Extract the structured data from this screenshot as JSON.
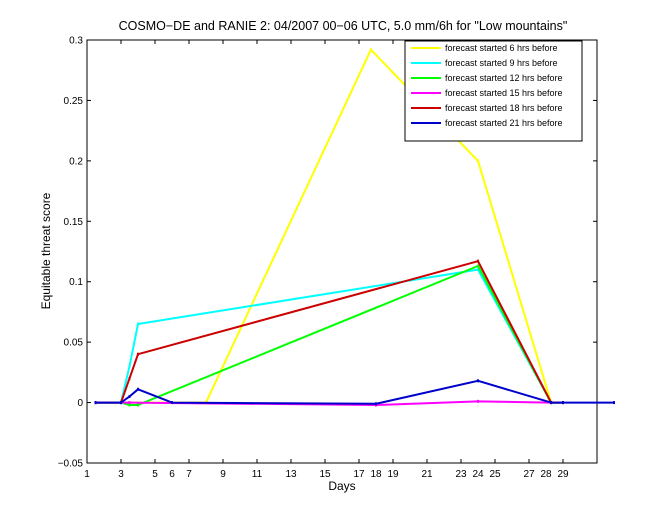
{
  "chart_data": {
    "type": "line",
    "title": "COSMO−DE and RANIE 2: 04/2007 00−06 UTC, 5.0 mm/6h for \"Low mountains\"",
    "xlabel": "Days",
    "ylabel": "Equitable threat score",
    "xlim": [
      1,
      31
    ],
    "ylim": [
      -0.05,
      0.3
    ],
    "xticks": [
      1,
      3,
      5,
      7,
      9,
      11,
      13,
      15,
      17,
      19,
      21,
      23,
      25,
      27,
      29
    ],
    "xtick_labels": [
      "1",
      "3",
      "5",
      "7",
      "9",
      "11",
      "13",
      "15",
      "17",
      "19",
      "21",
      "23",
      "25",
      "27",
      "29"
    ],
    "xtick_labels_secondary": [
      "6",
      "18",
      "24",
      "28"
    ],
    "yticks": [
      -0.05,
      0,
      0.05,
      0.1,
      0.15,
      0.2,
      0.25,
      0.3
    ],
    "ytick_labels": [
      "−0.05",
      "0",
      "0.05",
      "0.1",
      "0.15",
      "0.2",
      "0.25",
      "0.3"
    ],
    "grid": false,
    "legend_position": "top-right",
    "series": [
      {
        "name": "forecast started 6 hrs before",
        "color": "#ffff00",
        "points": [
          [
            1.5,
            0
          ],
          [
            3,
            0
          ],
          [
            3.5,
            0
          ],
          [
            6,
            0
          ],
          [
            8,
            0
          ],
          [
            17.7,
            0.292
          ],
          [
            24,
            0.2
          ],
          [
            28.3,
            0
          ],
          [
            29,
            0
          ]
        ]
      },
      {
        "name": "forecast started 9 hrs before",
        "color": "#00ffff",
        "points": [
          [
            1.5,
            0
          ],
          [
            3,
            0
          ],
          [
            3.5,
            0.03
          ],
          [
            4,
            0.065
          ],
          [
            24,
            0.11
          ],
          [
            28.3,
            0
          ],
          [
            29,
            0
          ]
        ]
      },
      {
        "name": "forecast started 12 hrs before",
        "color": "#00ff00",
        "points": [
          [
            1.5,
            0
          ],
          [
            3,
            0
          ],
          [
            3.5,
            -0.002
          ],
          [
            4,
            -0.002
          ],
          [
            24,
            0.113
          ],
          [
            28.3,
            0
          ],
          [
            29,
            0
          ]
        ]
      },
      {
        "name": "forecast started 15 hrs before",
        "color": "#ff00ff",
        "points": [
          [
            1.5,
            0
          ],
          [
            3,
            0
          ],
          [
            3.5,
            0
          ],
          [
            18,
            -0.002
          ],
          [
            24,
            0.001
          ],
          [
            28.3,
            0
          ],
          [
            29,
            0
          ]
        ]
      },
      {
        "name": "forecast started 18 hrs before",
        "color": "#cc0000",
        "points": [
          [
            1.5,
            0
          ],
          [
            3,
            0
          ],
          [
            3.5,
            0.02
          ],
          [
            4,
            0.04
          ],
          [
            24,
            0.117
          ],
          [
            28.3,
            0
          ],
          [
            29,
            0
          ]
        ]
      },
      {
        "name": "forecast started 21 hrs before",
        "color": "#0000cc",
        "points": [
          [
            1.5,
            0
          ],
          [
            3,
            0
          ],
          [
            3.5,
            0.005
          ],
          [
            4,
            0.011
          ],
          [
            6,
            0
          ],
          [
            18,
            -0.001
          ],
          [
            24,
            0.018
          ],
          [
            28.3,
            0
          ],
          [
            29,
            0
          ],
          [
            32,
            0
          ]
        ]
      }
    ]
  }
}
